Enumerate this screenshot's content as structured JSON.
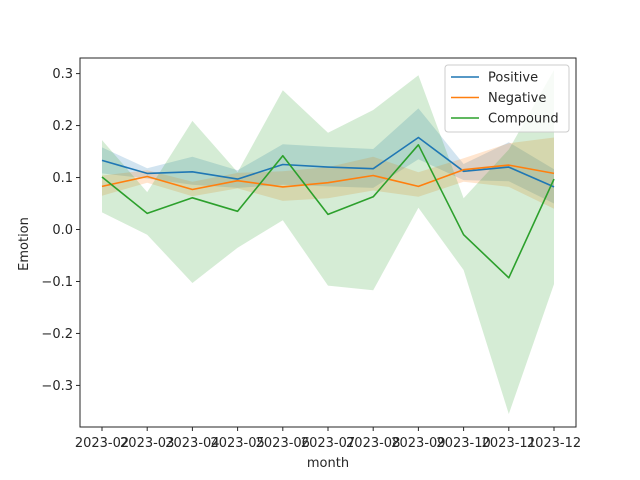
{
  "chart_data": {
    "type": "line",
    "title": "",
    "xlabel": "month",
    "ylabel": "Emotion",
    "x": [
      "2023-02",
      "2023-03",
      "2023-04",
      "2023-05",
      "2023-06",
      "2023-07",
      "2023-08",
      "2023-09",
      "2023-10",
      "2023-11",
      "2023-12"
    ],
    "ylim": [
      -0.38,
      0.33
    ],
    "yticks": [
      -0.3,
      -0.2,
      -0.1,
      0.0,
      0.1,
      0.2,
      0.3
    ],
    "ytick_labels": [
      "−0.3",
      "−0.2",
      "−0.1",
      "0.0",
      "0.1",
      "0.2",
      "0.3"
    ],
    "grid": false,
    "legend_position": "top-right",
    "series": [
      {
        "name": "Positive",
        "color": "#1f77b4",
        "values": [
          0.133,
          0.108,
          0.111,
          0.097,
          0.125,
          0.12,
          0.117,
          0.177,
          0.112,
          0.12,
          0.082
        ],
        "ci_lower": [
          0.108,
          0.098,
          0.086,
          0.08,
          0.086,
          0.083,
          0.08,
          0.135,
          0.095,
          0.093,
          0.05
        ],
        "ci_upper": [
          0.158,
          0.118,
          0.14,
          0.114,
          0.164,
          0.159,
          0.155,
          0.233,
          0.126,
          0.168,
          0.116
        ]
      },
      {
        "name": "Negative",
        "color": "#ff7f0e",
        "values": [
          0.083,
          0.102,
          0.077,
          0.094,
          0.082,
          0.09,
          0.104,
          0.083,
          0.115,
          0.124,
          0.108
        ],
        "ci_lower": [
          0.065,
          0.09,
          0.064,
          0.079,
          0.055,
          0.06,
          0.075,
          0.063,
          0.092,
          0.082,
          0.04
        ],
        "ci_upper": [
          0.104,
          0.114,
          0.092,
          0.109,
          0.112,
          0.12,
          0.14,
          0.11,
          0.137,
          0.166,
          0.177
        ]
      },
      {
        "name": "Compound",
        "color": "#2ca02c",
        "values": [
          0.101,
          0.031,
          0.061,
          0.035,
          0.142,
          0.029,
          0.063,
          0.163,
          -0.01,
          -0.093,
          0.097
        ],
        "ci_lower": [
          0.033,
          -0.01,
          -0.103,
          -0.035,
          0.018,
          -0.108,
          -0.117,
          0.042,
          -0.078,
          -0.355,
          -0.105
        ],
        "ci_upper": [
          0.172,
          0.072,
          0.209,
          0.11,
          0.268,
          0.186,
          0.23,
          0.297,
          0.06,
          0.154,
          0.307
        ]
      }
    ]
  }
}
